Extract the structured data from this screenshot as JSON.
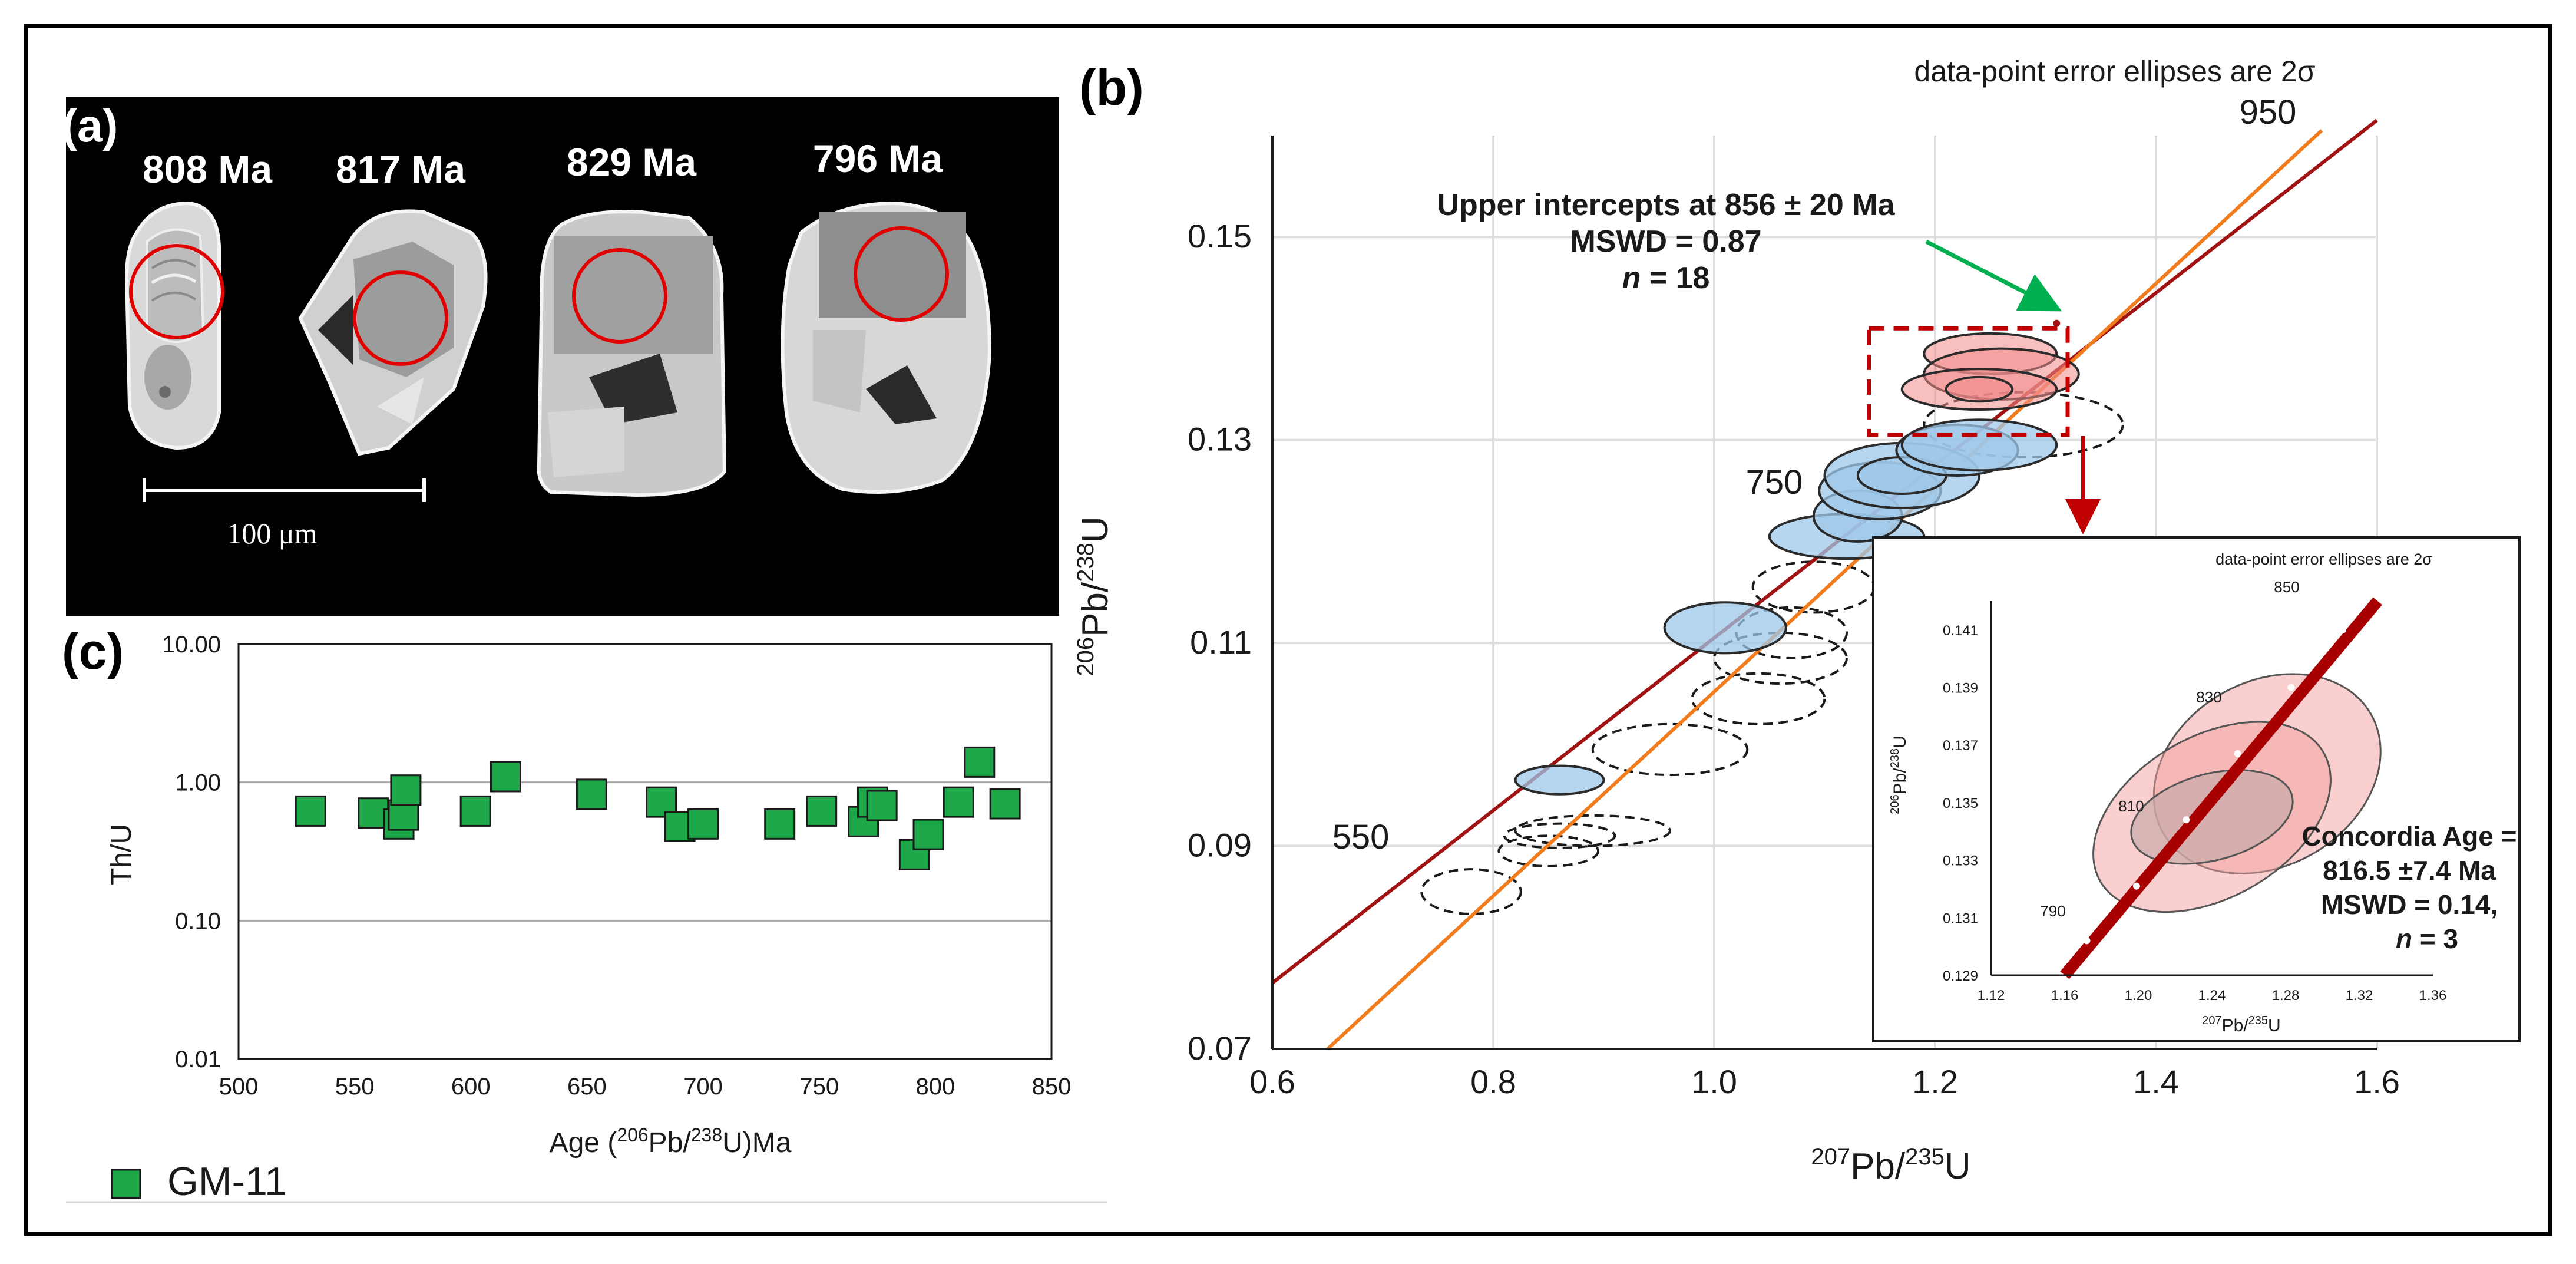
{
  "panel_a": {
    "label": "(a)",
    "ages": [
      "808 Ma",
      "817 Ma",
      "829 Ma",
      "796 Ma"
    ],
    "scale_label": "100 μm"
  },
  "panel_b": {
    "label": "(b)",
    "header": "data-point error ellipses are 2σ",
    "age_labels": [
      "950",
      "750",
      "550"
    ],
    "annotation": {
      "line1": "Upper intercepts at 856 ± 20 Ma",
      "line2": "MSWD = 0.87",
      "line3_prefix": "n",
      "line3_suffix": " = 18"
    },
    "xlabel": {
      "sup": "207",
      "main": "Pb/",
      "sup2": "235",
      "end": "U"
    },
    "ylabel": {
      "sup": "206",
      "main": "Pb/",
      "sup2": "238",
      "end": "U"
    },
    "colors": {
      "blue_fill": "#9dc7e8",
      "blue_edge": "#2b2b2b",
      "red_fill": "#f28a8a",
      "concordia": "#f07c1e",
      "discordia": "#a11212",
      "box": "#c00000",
      "arrow": "#00b050"
    }
  },
  "inset": {
    "header": "data-point error ellipses are 2σ",
    "age_labels": [
      "850",
      "830",
      "810",
      "790"
    ],
    "ylabel": {
      "sup": "206",
      "main": "Pb/",
      "sup2": "238",
      "end": "U"
    },
    "xlabel": {
      "sup": "207",
      "main": "Pb/",
      "sup2": "235",
      "end": "U"
    },
    "text": {
      "line1": "Concordia Age =",
      "line2": "816.5 ±7.4 Ma",
      "line3": "MSWD = 0.14,",
      "line4_prefix": "n",
      "line4_suffix": " = 3"
    }
  },
  "panel_c": {
    "label": "(c)",
    "legend": "GM-11",
    "marker_color": "#1ea84a"
  },
  "chart_data": [
    {
      "type": "scatter",
      "id": "concordia",
      "title": "",
      "xlabel": "207Pb/235U",
      "ylabel": "206Pb/238U",
      "xlim": [
        0.6,
        1.6
      ],
      "ylim": [
        0.07,
        0.16
      ],
      "x_ticks": [
        "0.6",
        "0.8",
        "1.0",
        "1.2",
        "1.4",
        "1.6"
      ],
      "y_ticks": [
        "0.07",
        "0.09",
        "0.11",
        "0.13",
        "0.15"
      ],
      "blue_ellipses": [
        {
          "x": 0.86,
          "y": 0.0965,
          "rx": 0.04,
          "ry": 0.0014
        },
        {
          "x": 1.01,
          "y": 0.1115,
          "rx": 0.055,
          "ry": 0.0025
        },
        {
          "x": 1.12,
          "y": 0.1205,
          "rx": 0.07,
          "ry": 0.0022
        },
        {
          "x": 1.13,
          "y": 0.1225,
          "rx": 0.04,
          "ry": 0.0025
        },
        {
          "x": 1.15,
          "y": 0.125,
          "rx": 0.055,
          "ry": 0.0028
        },
        {
          "x": 1.17,
          "y": 0.1265,
          "rx": 0.07,
          "ry": 0.0032
        },
        {
          "x": 1.17,
          "y": 0.1265,
          "rx": 0.04,
          "ry": 0.0018
        },
        {
          "x": 1.22,
          "y": 0.129,
          "rx": 0.055,
          "ry": 0.0025
        },
        {
          "x": 1.24,
          "y": 0.1295,
          "rx": 0.07,
          "ry": 0.0025
        }
      ],
      "red_ellipses": [
        {
          "x": 1.25,
          "y": 0.1385,
          "rx": 0.06,
          "ry": 0.002
        },
        {
          "x": 1.26,
          "y": 0.1365,
          "rx": 0.07,
          "ry": 0.0025
        },
        {
          "x": 1.24,
          "y": 0.135,
          "rx": 0.07,
          "ry": 0.002
        },
        {
          "x": 1.24,
          "y": 0.135,
          "rx": 0.03,
          "ry": 0.0012
        }
      ],
      "dashed_ellipses": [
        {
          "x": 0.78,
          "y": 0.0855,
          "rx": 0.045,
          "ry": 0.0022
        },
        {
          "x": 0.85,
          "y": 0.0895,
          "rx": 0.045,
          "ry": 0.0015
        },
        {
          "x": 0.86,
          "y": 0.091,
          "rx": 0.05,
          "ry": 0.0012
        },
        {
          "x": 0.89,
          "y": 0.0915,
          "rx": 0.07,
          "ry": 0.0015
        },
        {
          "x": 0.96,
          "y": 0.0995,
          "rx": 0.07,
          "ry": 0.0025
        },
        {
          "x": 1.04,
          "y": 0.1045,
          "rx": 0.06,
          "ry": 0.0025
        },
        {
          "x": 1.06,
          "y": 0.1085,
          "rx": 0.06,
          "ry": 0.0025
        },
        {
          "x": 1.07,
          "y": 0.111,
          "rx": 0.05,
          "ry": 0.0025
        },
        {
          "x": 1.09,
          "y": 0.1155,
          "rx": 0.055,
          "ry": 0.0025
        },
        {
          "x": 1.28,
          "y": 0.1315,
          "rx": 0.09,
          "ry": 0.0032
        }
      ],
      "concordia_line": [
        [
          0.65,
          0.07
        ],
        [
          1.55,
          0.1605
        ]
      ],
      "discordia_line": [
        [
          0.6,
          0.0765
        ],
        [
          1.6,
          0.1615
        ]
      ],
      "intercept": {
        "x": 1.31,
        "y": 0.1415
      },
      "highlight_box": {
        "x0": 1.14,
        "x1": 1.32,
        "y0": 0.1305,
        "y1": 0.141
      }
    },
    {
      "type": "scatter",
      "id": "inset_concordia",
      "title": "data-point error ellipses are 2σ",
      "xlabel": "207Pb/235U",
      "ylabel": "206Pb/238U",
      "xlim": [
        1.12,
        1.36
      ],
      "ylim": [
        0.129,
        0.142
      ],
      "x_ticks": [
        "1.12",
        "1.16",
        "1.20",
        "1.24",
        "1.28",
        "1.32",
        "1.36"
      ],
      "y_ticks": [
        "0.129",
        "0.131",
        "0.133",
        "0.135",
        "0.137",
        "0.139",
        "0.141"
      ],
      "ellipses": [
        {
          "x": 1.27,
          "y": 0.136,
          "rx": 0.065,
          "ry": 0.0032,
          "angle": -30
        },
        {
          "x": 1.24,
          "y": 0.1345,
          "rx": 0.07,
          "ry": 0.0028,
          "angle": -30
        },
        {
          "x": 1.24,
          "y": 0.1345,
          "rx": 0.045,
          "ry": 0.0015,
          "angle": -15
        }
      ],
      "concordia_line": [
        [
          1.16,
          0.129
        ],
        [
          1.33,
          0.142
        ]
      ],
      "age_markers": [
        [
          1.172,
          0.1302
        ],
        [
          1.199,
          0.1321
        ],
        [
          1.226,
          0.1344
        ],
        [
          1.254,
          0.1367
        ],
        [
          1.283,
          0.139
        ],
        [
          1.311,
          0.141
        ]
      ]
    },
    {
      "type": "scatter",
      "id": "thu_vs_age",
      "title": "",
      "xlabel": "Age (206Pb/238U)Ma",
      "ylabel": "Th/U",
      "xlim": [
        500,
        850
      ],
      "ylim": [
        0.01,
        10
      ],
      "yscale": "log",
      "x_ticks": [
        "500",
        "550",
        "600",
        "650",
        "700",
        "750",
        "800",
        "850"
      ],
      "y_ticks": [
        "0.01",
        "0.10",
        "1.00",
        "10.00"
      ],
      "series": [
        {
          "name": "GM-11",
          "points": [
            [
              531,
              0.62
            ],
            [
              558,
              0.6
            ],
            [
              569,
              0.5
            ],
            [
              571,
              0.58
            ],
            [
              572,
              0.88
            ],
            [
              602,
              0.62
            ],
            [
              615,
              1.1
            ],
            [
              652,
              0.82
            ],
            [
              682,
              0.72
            ],
            [
              690,
              0.48
            ],
            [
              700,
              0.5
            ],
            [
              733,
              0.5
            ],
            [
              751,
              0.62
            ],
            [
              769,
              0.52
            ],
            [
              773,
              0.72
            ],
            [
              777,
              0.68
            ],
            [
              791,
              0.3
            ],
            [
              797,
              0.42
            ],
            [
              810,
              0.72
            ],
            [
              819,
              1.4
            ],
            [
              830,
              0.7
            ]
          ]
        }
      ]
    }
  ]
}
